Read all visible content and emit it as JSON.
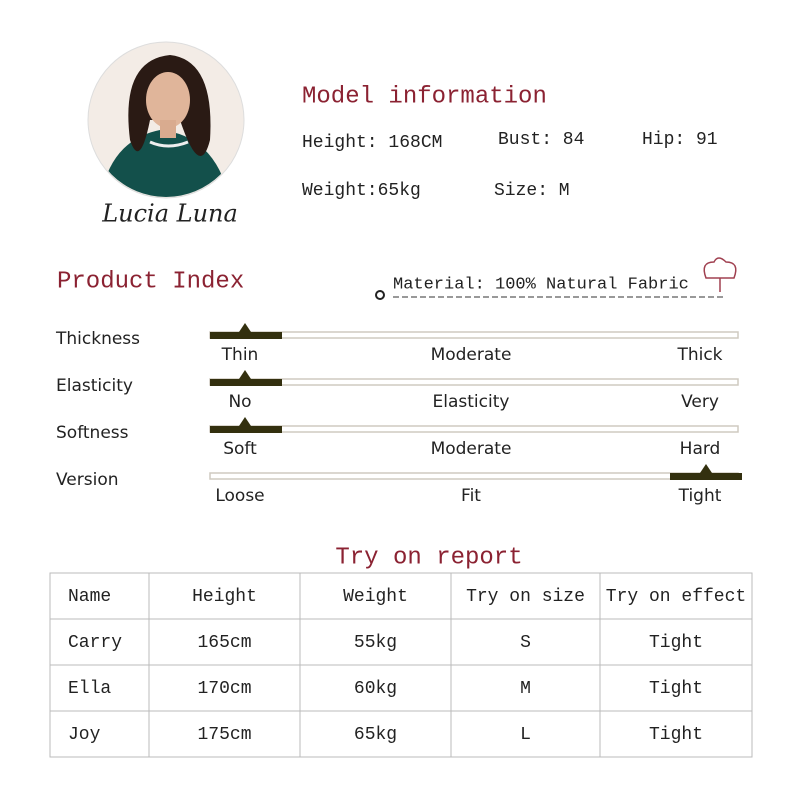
{
  "model": {
    "name": "Lucia Luna",
    "title": "Model information",
    "height": "Height: 168CM",
    "bust": "Bust: 84",
    "hip": "Hip: 91",
    "weight": "Weight:65kg",
    "size": "Size: M"
  },
  "product_index": {
    "title": "Product Index",
    "material": "Material: 100% Natural Fabric",
    "rows": [
      {
        "name": "Thickness",
        "labels": [
          "Thin",
          "Moderate",
          "Thick"
        ],
        "selected": "left"
      },
      {
        "name": "Elasticity",
        "labels": [
          "No",
          "Elasticity",
          "Very"
        ],
        "selected": "left"
      },
      {
        "name": "Softness",
        "labels": [
          "Soft",
          "Moderate",
          "Hard"
        ],
        "selected": "left"
      },
      {
        "name": "Version",
        "labels": [
          "Loose",
          "Fit",
          "Tight"
        ],
        "selected": "right"
      }
    ]
  },
  "try_on": {
    "title": "Try on report",
    "header": [
      "Name",
      "Height",
      "Weight",
      "Try on size",
      "Try on effect"
    ],
    "rows": [
      [
        "Carry",
        "165cm",
        "55kg",
        "S",
        "Tight"
      ],
      [
        "Ella",
        "170cm",
        "60kg",
        "M",
        "Tight"
      ],
      [
        "Joy",
        "175cm",
        "65kg",
        "L",
        "Tight"
      ]
    ]
  }
}
